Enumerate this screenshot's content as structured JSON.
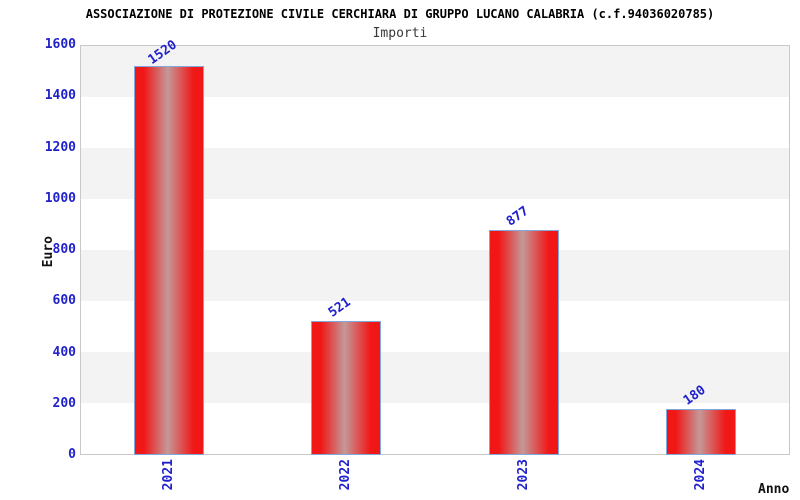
{
  "header": {
    "title": "ASSOCIAZIONE DI PROTEZIONE CIVILE CERCHIARA DI GRUPPO LUCANO CALABRIA (c.f.94036020785)",
    "subtitle": "Importi"
  },
  "chart_data": {
    "type": "bar",
    "title": "ASSOCIAZIONE DI PROTEZIONE CIVILE CERCHIARA DI GRUPPO LUCANO CALABRIA (c.f.94036020785)",
    "subtitle": "Importi",
    "categories": [
      "2021",
      "2022",
      "2023",
      "2024"
    ],
    "values": [
      1520,
      521,
      877,
      180
    ],
    "bar_value_labels": [
      "1520",
      "521",
      "877",
      "180"
    ],
    "xlabel": "Anno",
    "ylabel": "Euro",
    "ylim": [
      0,
      1600
    ],
    "ytick_step": 200,
    "ytick_labels": [
      "0",
      "200",
      "400",
      "600",
      "800",
      "1000",
      "1200",
      "1400",
      "1600"
    ],
    "grid": "alternating horizontal gray/white bands every 200 units, gray topmost",
    "legend_position": "none",
    "colors": {
      "bar_edge_red": "#f11717",
      "bar_center_sheen": "#c49898",
      "bar_border_blue": "#7fa8dc",
      "axis_text_blue": "#2121cc",
      "band_gray": "#f3f3f3",
      "plot_border_gray": "#c9c9c9",
      "title_black": "#000000",
      "subtitle_gray": "#3a3a3a"
    }
  }
}
